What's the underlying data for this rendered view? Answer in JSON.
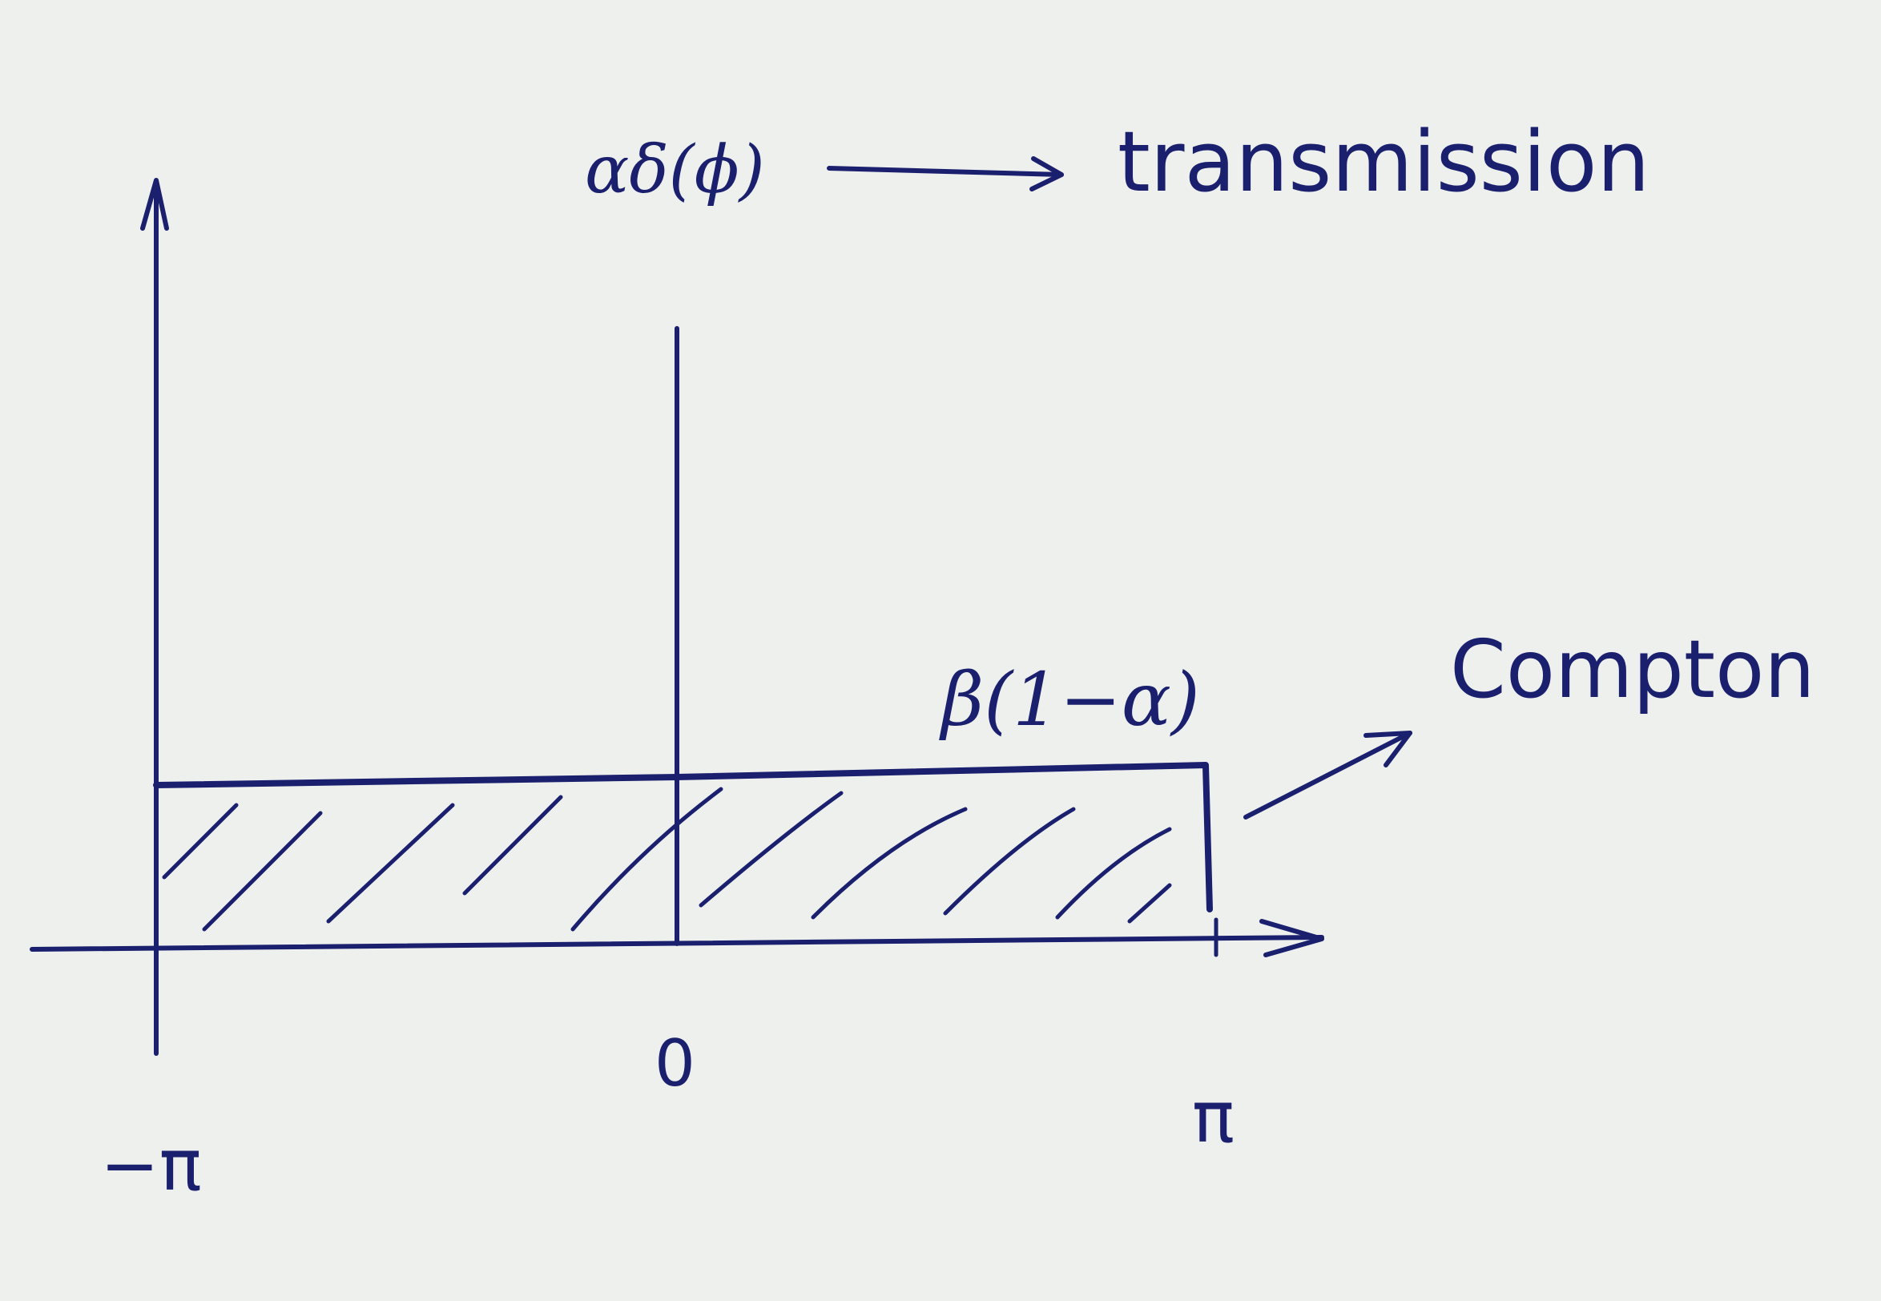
{
  "annotations": {
    "delta_label": "αδ(ϕ)",
    "transmission_label": "transmission",
    "beta_label": "β(1−α)",
    "compton_label": "Compton"
  },
  "axis": {
    "tick_neg_pi": "−π",
    "tick_zero": "0",
    "tick_pi": "π"
  },
  "colors": {
    "ink": "#1a1f6e",
    "paper": "#eef0ee"
  }
}
